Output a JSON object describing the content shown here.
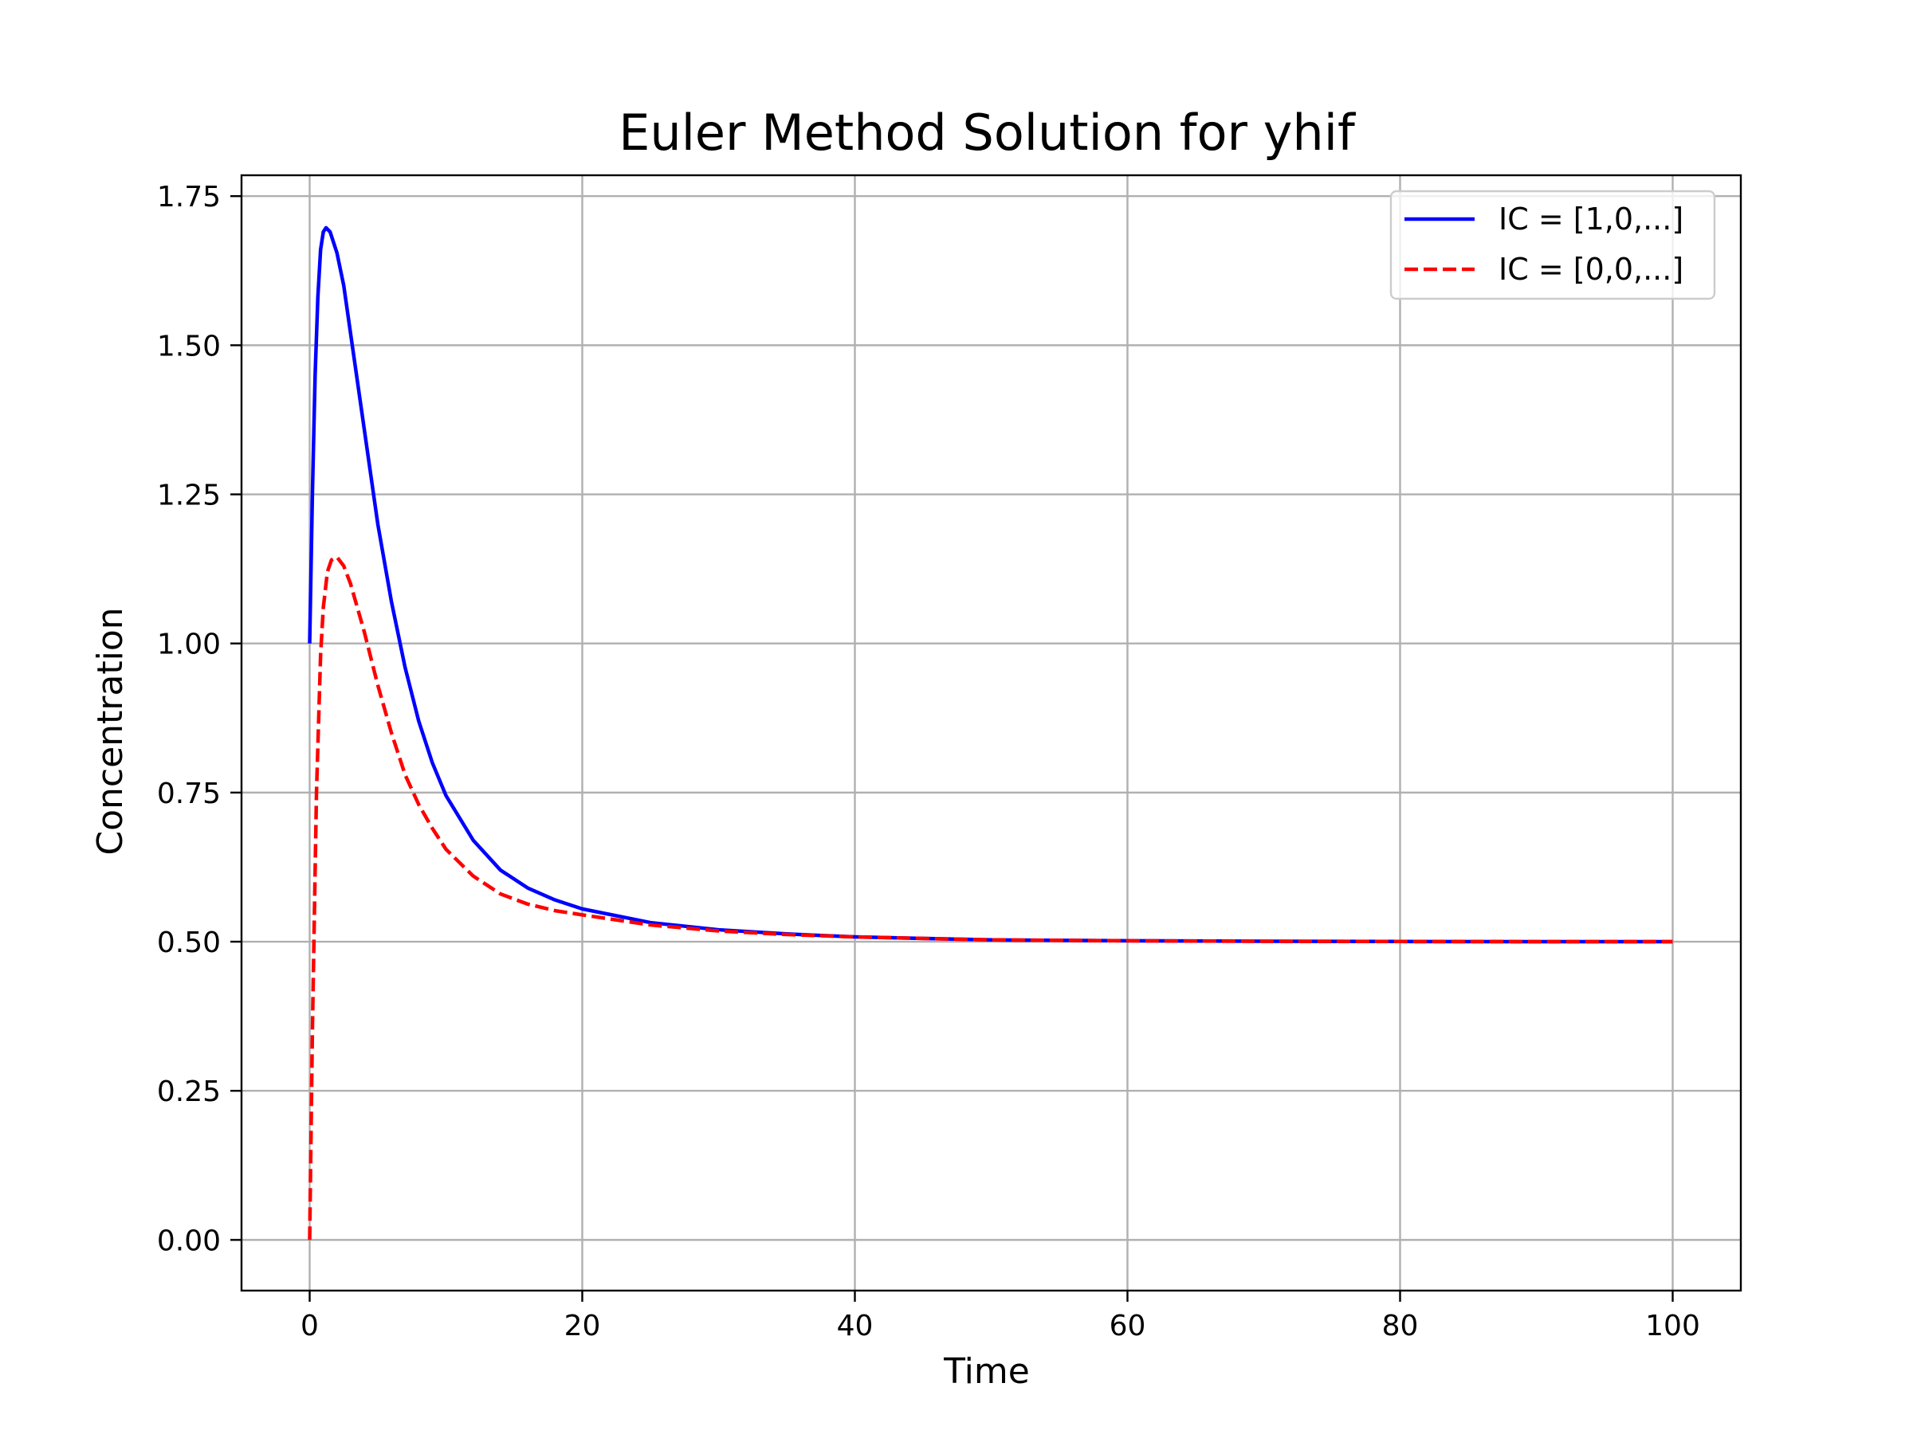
{
  "chart_data": {
    "type": "line",
    "title": "Euler Method Solution for yhif",
    "xlabel": "Time",
    "ylabel": "Concentration",
    "xlim": [
      -5,
      105
    ],
    "ylim": [
      -0.085,
      1.785
    ],
    "xticks": [
      0,
      20,
      40,
      60,
      80,
      100
    ],
    "yticks": [
      0.0,
      0.25,
      0.5,
      0.75,
      1.0,
      1.25,
      1.5,
      1.75
    ],
    "xtick_labels": [
      "0",
      "20",
      "40",
      "60",
      "80",
      "100"
    ],
    "ytick_labels": [
      "0.00",
      "0.25",
      "0.50",
      "0.75",
      "1.00",
      "1.25",
      "1.50",
      "1.75"
    ],
    "grid": true,
    "legend_position": "top-right",
    "series": [
      {
        "name": "IC = [1,0,...]",
        "color": "#0000ff",
        "style": "solid",
        "x": [
          0,
          0.2,
          0.4,
          0.6,
          0.8,
          1.0,
          1.2,
          1.5,
          2,
          2.5,
          3,
          4,
          5,
          6,
          7,
          8,
          9,
          10,
          12,
          14,
          16,
          18,
          20,
          25,
          30,
          35,
          40,
          50,
          60,
          70,
          80,
          90,
          100
        ],
        "y": [
          1.0,
          1.25,
          1.45,
          1.58,
          1.66,
          1.69,
          1.697,
          1.69,
          1.655,
          1.6,
          1.52,
          1.36,
          1.2,
          1.07,
          0.96,
          0.87,
          0.8,
          0.745,
          0.67,
          0.62,
          0.59,
          0.57,
          0.555,
          0.532,
          0.52,
          0.513,
          0.508,
          0.503,
          0.5015,
          0.5007,
          0.5003,
          0.5001,
          0.5
        ]
      },
      {
        "name": "IC = [0,0,...]",
        "color": "#ff0000",
        "style": "dashed",
        "x": [
          0,
          0.2,
          0.5,
          0.8,
          1.0,
          1.3,
          1.6,
          2.0,
          2.5,
          3,
          4,
          5,
          6,
          7,
          8,
          9,
          10,
          12,
          14,
          16,
          18,
          20,
          25,
          30,
          35,
          40,
          50,
          60,
          70,
          80,
          90,
          100
        ],
        "y": [
          0.0,
          0.35,
          0.75,
          0.98,
          1.06,
          1.12,
          1.14,
          1.145,
          1.13,
          1.1,
          1.02,
          0.93,
          0.85,
          0.78,
          0.73,
          0.69,
          0.655,
          0.61,
          0.58,
          0.563,
          0.552,
          0.545,
          0.528,
          0.518,
          0.512,
          0.508,
          0.503,
          0.5015,
          0.5007,
          0.5003,
          0.5001,
          0.5
        ]
      }
    ]
  }
}
